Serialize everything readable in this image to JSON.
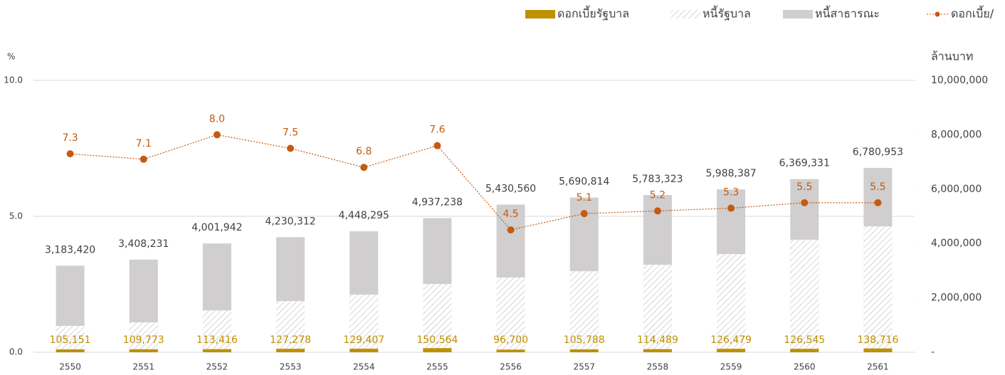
{
  "chart_data": {
    "type": "combo",
    "y_label": "%",
    "y2_label": "ล้านบาท",
    "categories": [
      "2550",
      "2551",
      "2552",
      "2553",
      "2554",
      "2555",
      "2556",
      "2557",
      "2558",
      "2559",
      "2560",
      "2561"
    ],
    "ylim": [
      0,
      10
    ],
    "yticks": [
      {
        "value": 0,
        "label": "0.0"
      },
      {
        "value": 5,
        "label": "5.0"
      },
      {
        "value": 10,
        "label": "10.0"
      }
    ],
    "y2lim": [
      0,
      10000000
    ],
    "y2ticks": [
      {
        "value": 0,
        "label": "-"
      },
      {
        "value": 2000000,
        "label": "2,000,000"
      },
      {
        "value": 4000000,
        "label": "4,000,000"
      },
      {
        "value": 6000000,
        "label": "6,000,000"
      },
      {
        "value": 8000000,
        "label": "8,000,000"
      },
      {
        "value": 10000000,
        "label": "10,000,000"
      }
    ],
    "grid": true,
    "legend_position": "top-right",
    "series": [
      {
        "name": "ดอกเบี้ยรัฐบาล",
        "type": "bar",
        "axis": "y2",
        "color": "#bf9000",
        "values": [
          105151,
          109773,
          113416,
          127278,
          129407,
          150564,
          96700,
          105788,
          114489,
          126479,
          126545,
          138716
        ],
        "value_labels": [
          "105,151",
          "109,773",
          "113,416",
          "127,278",
          "129,407",
          "150,564",
          "96,700",
          "105,788",
          "114,489",
          "126,479",
          "126,545",
          "138,716"
        ]
      },
      {
        "name": "หนี้รัฐบาล",
        "type": "hatched-bar",
        "axis": "y2",
        "color": "#bfbfbf",
        "values": [
          970000,
          1100000,
          1540000,
          1880000,
          2120000,
          2510000,
          2750000,
          2980000,
          3220000,
          3610000,
          4140000,
          4630000
        ]
      },
      {
        "name": "หนี้สาธารณะ",
        "type": "bar",
        "axis": "y2",
        "color": "#d0cece",
        "values": [
          3183420,
          3408231,
          4001942,
          4230312,
          4448295,
          4937238,
          5430560,
          5690814,
          5783323,
          5988387,
          6369331,
          6780953
        ],
        "value_labels": [
          "3,183,420",
          "3,408,231",
          "4,001,942",
          "4,230,312",
          "4,448,295",
          "4,937,238",
          "5,430,560",
          "5,690,814",
          "5,783,323",
          "5,988,387",
          "6,369,331",
          "6,780,953"
        ]
      },
      {
        "name": "ดอกเบี้ย/",
        "type": "line",
        "axis": "y",
        "color": "#c55a11",
        "values": [
          7.3,
          7.1,
          8.0,
          7.5,
          6.8,
          7.6,
          4.5,
          5.1,
          5.2,
          5.3,
          5.5,
          5.5
        ],
        "value_labels": [
          "7.3",
          "7.1",
          "8.0",
          "7.5",
          "6.8",
          "7.6",
          "4.5",
          "5.1",
          "5.2",
          "5.3",
          "5.5",
          "5.5"
        ]
      }
    ]
  }
}
